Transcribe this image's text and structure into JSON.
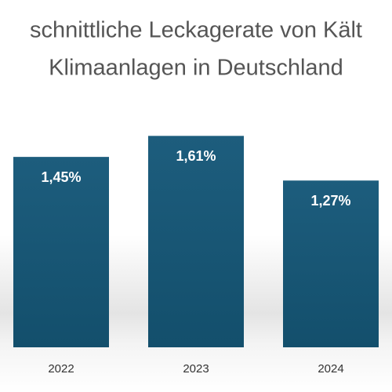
{
  "chart_data": {
    "type": "bar",
    "title": [
      "schnittliche Leckagerate von Kält",
      "Klimaanlagen in Deutschland"
    ],
    "categories": [
      "2022",
      "2023",
      "2024"
    ],
    "values": [
      1.45,
      1.61,
      1.27
    ],
    "value_labels": [
      "1,45%",
      "1,61%",
      "1,27%"
    ],
    "color": "#1a5878"
  }
}
